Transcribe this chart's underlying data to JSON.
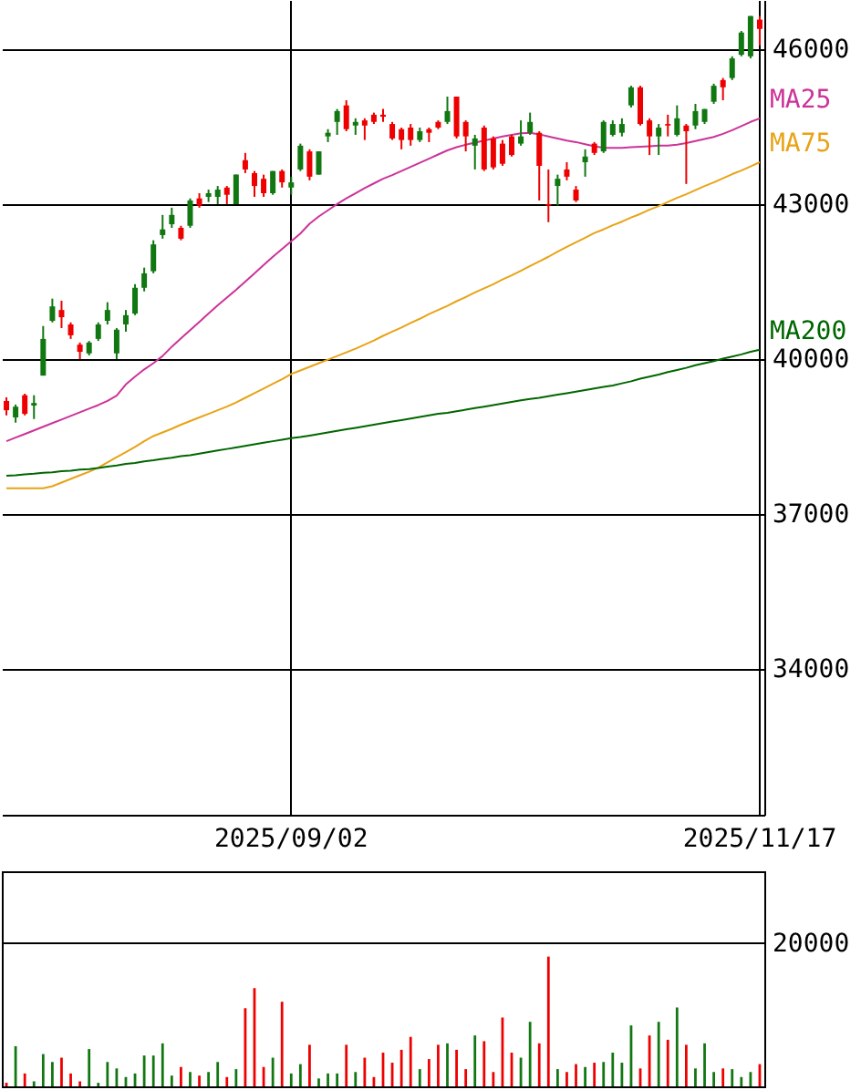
{
  "chart_data": [
    {
      "type": "candlestick",
      "categories": [
        null,
        null,
        null,
        null,
        null,
        null,
        null,
        null,
        null,
        null,
        null,
        null,
        null,
        null,
        null,
        null,
        null,
        null,
        null,
        null,
        null,
        null,
        null,
        null,
        null,
        null,
        null,
        null,
        null,
        null,
        null,
        "2025/09/02",
        null,
        null,
        null,
        null,
        null,
        null,
        null,
        null,
        null,
        null,
        null,
        null,
        null,
        null,
        null,
        null,
        null,
        null,
        null,
        null,
        null,
        null,
        null,
        null,
        null,
        null,
        null,
        null,
        null,
        null,
        null,
        null,
        null,
        null,
        null,
        null,
        null,
        null,
        null,
        null,
        null,
        null,
        null,
        null,
        null,
        null,
        null,
        null,
        null,
        null,
        "2025/11/17"
      ],
      "ohlc": [
        [
          39190,
          39260,
          38910,
          39010
        ],
        [
          38870,
          39120,
          38770,
          39080
        ],
        [
          39300,
          39330,
          38910,
          38940
        ],
        [
          39100,
          39300,
          38840,
          39150
        ],
        [
          39680,
          40640,
          39680,
          40390
        ],
        [
          40740,
          41170,
          40710,
          41020
        ],
        [
          40950,
          41130,
          40600,
          40810
        ],
        [
          40670,
          40710,
          40390,
          40460
        ],
        [
          40280,
          40320,
          40000,
          40140
        ],
        [
          40110,
          40350,
          40070,
          40320
        ],
        [
          40390,
          40710,
          40350,
          40670
        ],
        [
          40740,
          41100,
          40670,
          40950
        ],
        [
          40110,
          40600,
          40000,
          40570
        ],
        [
          40670,
          40950,
          40530,
          40850
        ],
        [
          40880,
          41450,
          40850,
          41380
        ],
        [
          41380,
          41770,
          41310,
          41660
        ],
        [
          41700,
          42300,
          41660,
          42220
        ],
        [
          42400,
          42790,
          42330,
          42510
        ],
        [
          42610,
          42930,
          42540,
          42790
        ],
        [
          42540,
          42580,
          42300,
          42330
        ],
        [
          42580,
          43110,
          42540,
          43070
        ],
        [
          43110,
          43210,
          42930,
          42970
        ],
        [
          43140,
          43280,
          43040,
          43210
        ],
        [
          43140,
          43350,
          43000,
          43280
        ],
        [
          43320,
          43350,
          43000,
          43180
        ],
        [
          43000,
          43570,
          43000,
          43570
        ],
        [
          43850,
          43990,
          43600,
          43670
        ],
        [
          43600,
          43640,
          43140,
          43350
        ],
        [
          43490,
          43570,
          43140,
          43210
        ],
        [
          43210,
          43640,
          43180,
          43640
        ],
        [
          43640,
          43670,
          43320,
          43420
        ],
        [
          43320,
          43530,
          43180,
          43420
        ],
        [
          43670,
          44170,
          43640,
          44130
        ],
        [
          44020,
          44060,
          43460,
          43530
        ],
        [
          43570,
          44020,
          43570,
          44020
        ],
        [
          44310,
          44450,
          44200,
          44380
        ],
        [
          44590,
          44840,
          44340,
          44800
        ],
        [
          44910,
          45010,
          44410,
          44450
        ],
        [
          44520,
          44660,
          44340,
          44590
        ],
        [
          44620,
          44660,
          44240,
          44520
        ],
        [
          44730,
          44770,
          44550,
          44590
        ],
        [
          44730,
          44840,
          44590,
          44690
        ],
        [
          44550,
          44590,
          44240,
          44270
        ],
        [
          44450,
          44480,
          44060,
          44240
        ],
        [
          44480,
          44550,
          44130,
          44240
        ],
        [
          44240,
          44480,
          44200,
          44410
        ],
        [
          44450,
          44480,
          44200,
          44380
        ],
        [
          44590,
          44620,
          44450,
          44480
        ],
        [
          44590,
          45080,
          44550,
          44800
        ],
        [
          45080,
          45080,
          44270,
          44310
        ],
        [
          44590,
          44620,
          44020,
          44310
        ],
        [
          44130,
          44340,
          43670,
          44270
        ],
        [
          44480,
          44520,
          43640,
          43670
        ],
        [
          44270,
          44310,
          43670,
          43710
        ],
        [
          44170,
          44240,
          43740,
          43780
        ],
        [
          44310,
          44340,
          43920,
          43950
        ],
        [
          44170,
          44620,
          44130,
          44310
        ],
        [
          44380,
          44770,
          44340,
          44590
        ],
        [
          44380,
          44410,
          43070,
          43740
        ],
        [
          43000,
          43670,
          42650,
          42970
        ],
        [
          43350,
          43570,
          42970,
          43490
        ],
        [
          43670,
          43810,
          43460,
          43530
        ],
        [
          43280,
          43350,
          43040,
          43070
        ],
        [
          43810,
          44060,
          43530,
          43920
        ],
        [
          44170,
          44200,
          43950,
          43990
        ],
        [
          44020,
          44620,
          43990,
          44590
        ],
        [
          44340,
          44620,
          44310,
          44550
        ],
        [
          44380,
          44660,
          44310,
          44550
        ],
        [
          44910,
          45290,
          44870,
          45260
        ],
        [
          45260,
          45290,
          44520,
          44550
        ],
        [
          44620,
          44660,
          43950,
          44310
        ],
        [
          44310,
          44550,
          43950,
          44480
        ],
        [
          44550,
          44730,
          44310,
          44520
        ],
        [
          44340,
          44910,
          44310,
          44660
        ],
        [
          44520,
          44550,
          43390,
          44410
        ],
        [
          44520,
          44940,
          44450,
          44800
        ],
        [
          44590,
          44840,
          44550,
          44840
        ],
        [
          44980,
          45330,
          44940,
          45290
        ],
        [
          45400,
          45440,
          45010,
          45260
        ],
        [
          45440,
          45860,
          45400,
          45820
        ],
        [
          45890,
          46350,
          45860,
          46320
        ],
        [
          45860,
          46640,
          45820,
          46640
        ],
        [
          46570,
          46640,
          46070,
          46390
        ]
      ],
      "colors": [
        "#ee0000",
        "#117711",
        "#ee0000",
        "#117711",
        "#117711",
        "#117711",
        "#ee0000",
        "#ee0000",
        "#ee0000",
        "#117711",
        "#117711",
        "#117711",
        "#117711",
        "#117711",
        "#117711",
        "#117711",
        "#117711",
        "#117711",
        "#117711",
        "#ee0000",
        "#117711",
        "#ee0000",
        "#117711",
        "#117711",
        "#ee0000",
        "#117711",
        "#ee0000",
        "#ee0000",
        "#ee0000",
        "#117711",
        "#ee0000",
        "#117711",
        "#117711",
        "#ee0000",
        "#117711",
        "#117711",
        "#117711",
        "#ee0000",
        "#117711",
        "#ee0000",
        "#ee0000",
        "#ee0000",
        "#ee0000",
        "#ee0000",
        "#ee0000",
        "#117711",
        "#ee0000",
        "#ee0000",
        "#117711",
        "#ee0000",
        "#ee0000",
        "#117711",
        "#ee0000",
        "#ee0000",
        "#ee0000",
        "#ee0000",
        "#117711",
        "#117711",
        "#ee0000",
        "#ee0000",
        "#117711",
        "#ee0000",
        "#ee0000",
        "#117711",
        "#ee0000",
        "#117711",
        "#117711",
        "#117711",
        "#117711",
        "#ee0000",
        "#ee0000",
        "#117711",
        "#ee0000",
        "#117711",
        "#ee0000",
        "#117711",
        "#117711",
        "#117711",
        "#ee0000",
        "#117711",
        "#117711",
        "#117711",
        "#ee0000"
      ],
      "series": [
        {
          "name": "MA25",
          "type": "line",
          "color": "#cc3399",
          "values": [
            38410,
            38480,
            38550,
            38620,
            38690,
            38760,
            38830,
            38900,
            38970,
            39040,
            39110,
            39190,
            39290,
            39510,
            39660,
            39800,
            39920,
            40060,
            40240,
            40400,
            40560,
            40720,
            40880,
            41040,
            41190,
            41340,
            41500,
            41660,
            41820,
            41980,
            42130,
            42280,
            42430,
            42620,
            42760,
            42880,
            43000,
            43110,
            43210,
            43310,
            43400,
            43490,
            43560,
            43640,
            43720,
            43800,
            43880,
            43960,
            44040,
            44100,
            44150,
            44190,
            44230,
            44270,
            44310,
            44340,
            44370,
            44380,
            44350,
            44310,
            44270,
            44230,
            44200,
            44160,
            44120,
            44090,
            44090,
            44090,
            44100,
            44110,
            44120,
            44130,
            44130,
            44150,
            44180,
            44220,
            44260,
            44300,
            44360,
            44430,
            44510,
            44590,
            44660
          ]
        },
        {
          "name": "MA75",
          "type": "line",
          "color": "#e8a317",
          "values": [
            37500,
            37500,
            37500,
            37500,
            37500,
            37540,
            37610,
            37680,
            37750,
            37820,
            37900,
            38000,
            38100,
            38200,
            38300,
            38410,
            38510,
            38580,
            38650,
            38730,
            38800,
            38870,
            38940,
            39010,
            39080,
            39160,
            39250,
            39340,
            39430,
            39520,
            39610,
            39710,
            39780,
            39850,
            39920,
            39990,
            40060,
            40130,
            40200,
            40280,
            40360,
            40450,
            40530,
            40610,
            40700,
            40780,
            40870,
            40950,
            41030,
            41120,
            41200,
            41290,
            41370,
            41450,
            41540,
            41620,
            41710,
            41800,
            41890,
            41980,
            42080,
            42170,
            42260,
            42350,
            42440,
            42510,
            42590,
            42660,
            42740,
            42810,
            42890,
            42960,
            43040,
            43120,
            43190,
            43270,
            43350,
            43420,
            43500,
            43580,
            43650,
            43730,
            43810
          ]
        },
        {
          "name": "MA200",
          "type": "line",
          "color": "#006600",
          "values": [
            37740,
            37750,
            37770,
            37780,
            37800,
            37810,
            37830,
            37840,
            37860,
            37870,
            37890,
            37920,
            37940,
            37970,
            37990,
            38020,
            38040,
            38070,
            38090,
            38120,
            38140,
            38170,
            38200,
            38230,
            38260,
            38290,
            38320,
            38350,
            38380,
            38410,
            38440,
            38470,
            38490,
            38520,
            38550,
            38580,
            38610,
            38640,
            38670,
            38700,
            38730,
            38760,
            38790,
            38820,
            38850,
            38880,
            38910,
            38940,
            38960,
            38990,
            39020,
            39050,
            39080,
            39110,
            39140,
            39170,
            39200,
            39230,
            39250,
            39280,
            39310,
            39340,
            39370,
            39400,
            39430,
            39460,
            39490,
            39530,
            39570,
            39620,
            39660,
            39700,
            39750,
            39790,
            39830,
            39880,
            39920,
            39960,
            40010,
            40050,
            40090,
            40140,
            40180
          ]
        }
      ],
      "ylim": [
        31180,
        46950
      ],
      "yticks": [
        34000,
        37000,
        40000,
        43000,
        46000
      ],
      "grid": true
    },
    {
      "type": "bar",
      "categories": [
        null,
        null,
        null,
        null,
        null,
        null,
        null,
        null,
        null,
        null,
        null,
        null,
        null,
        null,
        null,
        null,
        null,
        null,
        null,
        null,
        null,
        null,
        null,
        null,
        null,
        null,
        null,
        null,
        null,
        null,
        null,
        null,
        null,
        null,
        null,
        null,
        null,
        null,
        null,
        null,
        null,
        null,
        null,
        null,
        null,
        null,
        null,
        null,
        null,
        null,
        null,
        null,
        null,
        null,
        null,
        null,
        null,
        null,
        null,
        null,
        null,
        null,
        null,
        null,
        null,
        null,
        null,
        null,
        null,
        null,
        null,
        null,
        null,
        null,
        null,
        null,
        null,
        null,
        null,
        null,
        null,
        null,
        null
      ],
      "values": [
        500,
        5600,
        1800,
        700,
        4500,
        3400,
        4000,
        1800,
        700,
        5200,
        500,
        3400,
        2500,
        1300,
        1800,
        4300,
        4300,
        6000,
        1500,
        2700,
        2000,
        1500,
        2000,
        3400,
        1300,
        2400,
        10900,
        13700,
        2700,
        4000,
        11800,
        1800,
        3100,
        5800,
        1100,
        1800,
        1800,
        5800,
        2000,
        4000,
        1300,
        4700,
        3300,
        5100,
        6900,
        2400,
        3800,
        5800,
        6000,
        5100,
        2400,
        7100,
        6300,
        2000,
        9600,
        4700,
        4000,
        9000,
        6000,
        18100,
        2400,
        2000,
        3100,
        2700,
        3300,
        3400,
        4700,
        3300,
        8500,
        2500,
        7100,
        9000,
        6500,
        11000,
        5800,
        2500,
        6000,
        2000,
        2500,
        2400,
        1300,
        2000,
        3100
      ],
      "colors": [
        "#ee0000",
        "#117711",
        "#ee0000",
        "#117711",
        "#117711",
        "#117711",
        "#ee0000",
        "#ee0000",
        "#ee0000",
        "#117711",
        "#117711",
        "#117711",
        "#117711",
        "#117711",
        "#117711",
        "#117711",
        "#117711",
        "#117711",
        "#117711",
        "#ee0000",
        "#117711",
        "#ee0000",
        "#117711",
        "#117711",
        "#ee0000",
        "#117711",
        "#ee0000",
        "#ee0000",
        "#ee0000",
        "#117711",
        "#ee0000",
        "#117711",
        "#117711",
        "#ee0000",
        "#117711",
        "#117711",
        "#117711",
        "#ee0000",
        "#117711",
        "#ee0000",
        "#ee0000",
        "#ee0000",
        "#ee0000",
        "#ee0000",
        "#ee0000",
        "#117711",
        "#ee0000",
        "#ee0000",
        "#117711",
        "#ee0000",
        "#ee0000",
        "#117711",
        "#ee0000",
        "#ee0000",
        "#ee0000",
        "#ee0000",
        "#117711",
        "#117711",
        "#ee0000",
        "#ee0000",
        "#117711",
        "#ee0000",
        "#ee0000",
        "#117711",
        "#ee0000",
        "#117711",
        "#117711",
        "#117711",
        "#117711",
        "#ee0000",
        "#ee0000",
        "#117711",
        "#ee0000",
        "#117711",
        "#ee0000",
        "#117711",
        "#117711",
        "#117711",
        "#ee0000",
        "#117711",
        "#117711",
        "#117711",
        "#ee0000"
      ],
      "ylim": [
        0,
        30000
      ],
      "yticks": [
        20000
      ],
      "grid": "y",
      "tick_labels": "y"
    }
  ]
}
